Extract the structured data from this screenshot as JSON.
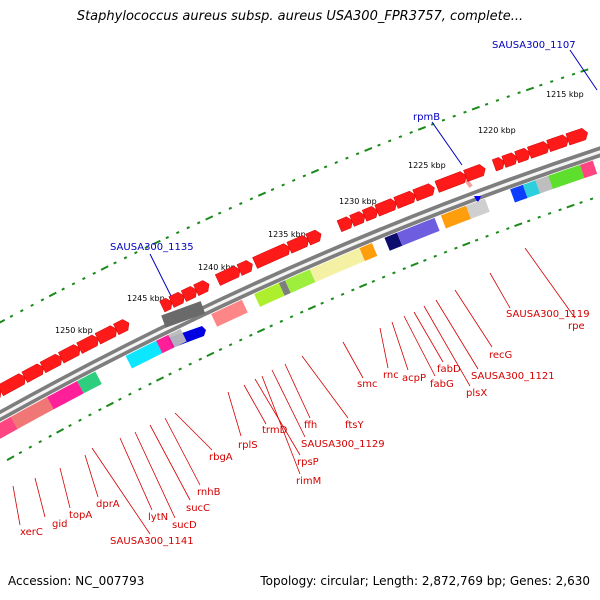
{
  "title": "Staphylococcus aureus subsp. aureus USA300_FPR3757, complete...",
  "footer": {
    "accession": "Accession: NC_007793",
    "summary": "Topology: circular; Length: 2,872,769 bp; Genes: 2,630"
  },
  "colors": {
    "backbone": "#8a8a8a",
    "tick": "#1a8a1a",
    "gene_label": "#d40000",
    "outside_label": "#0000c0",
    "gene_fill": "#ff0000"
  },
  "ticks": [
    "1215 kbp",
    "1220 kbp",
    "1225 kbp",
    "1230 kbp",
    "1235 kbp",
    "1240 kbp",
    "1245 kbp",
    "1250 kbp"
  ],
  "outside_labels": [
    "SAUSA300_1107",
    "rpmB",
    "SAUSA300_1135"
  ],
  "gene_labels": [
    "xerC",
    "gid",
    "topA",
    "dprA",
    "SAUSA300_1141",
    "lytN",
    "sucD",
    "sucC",
    "rnhB",
    "rbgA",
    "rplS",
    "trmD",
    "rpsP",
    "rimM",
    "SAUSA300_1129",
    "ffh",
    "ftsY",
    "smc",
    "rnc",
    "acpP",
    "fabG",
    "fabD",
    "plsX",
    "SAUSA300_1121",
    "recG",
    "SAUSA300_1119",
    "rpe"
  ]
}
